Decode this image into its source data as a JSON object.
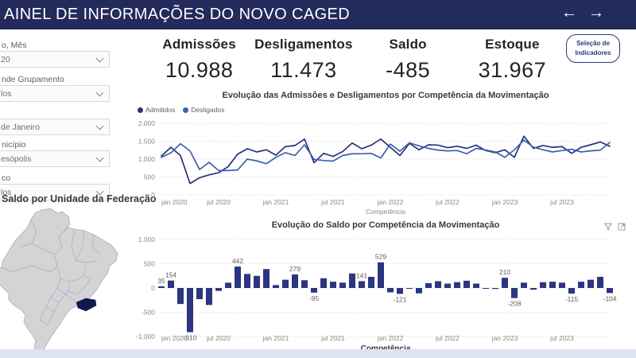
{
  "colors": {
    "header_bg": "#232a5c",
    "accent_navy": "#2c357f",
    "admitidos": "#27327e",
    "desligados": "#3d61ae",
    "bar": "#2c357f",
    "map_state_fill": "#d4d4d6",
    "map_state_border": "#a9adb6",
    "map_highlight": "#0e1a4e",
    "footer_bg": "#dce3f1"
  },
  "header": {
    "title": "AINEL DE INFORMAÇÕES DO NOVO CAGED",
    "back_arrow": "←",
    "forward_arrow": "→"
  },
  "sidebar": {
    "filters": [
      {
        "label": "o, Mês",
        "value": "20"
      },
      {
        "label": "nde Grupamento",
        "value": "los"
      },
      {
        "label": "",
        "value": "de Janeiro"
      },
      {
        "label": "nicípio",
        "value": "esópolis"
      },
      {
        "label": "co",
        "value": "los"
      }
    ],
    "map_title": "Saldo por Unidade da Federação"
  },
  "kpis": [
    {
      "label": "Admissões",
      "value": "10.988"
    },
    {
      "label": "Desligamentos",
      "value": "11.473"
    },
    {
      "label": "Saldo",
      "value": "-485"
    },
    {
      "label": "Estoque",
      "value": "31.967"
    }
  ],
  "indicator_button": {
    "line1": "Seleção de",
    "line2": "Indicadores"
  },
  "chart_data": [
    {
      "type": "line",
      "title": "Evolução das Admissões e Desligamentos por Competência da Movimentação",
      "xlabel": "Competência",
      "ylabel": "",
      "grid": true,
      "legend_position": "top-left",
      "ylim": [
        0,
        2000
      ],
      "y_ticks": [
        0,
        500,
        1000,
        1500,
        2000
      ],
      "x_ticks": [
        "jan 2020",
        "jul 2020",
        "jan 2021",
        "jul 2021",
        "jan 2022",
        "jul 2022",
        "jan 2023",
        "jul 2023"
      ],
      "x_tick_indices": [
        0,
        6,
        12,
        18,
        24,
        30,
        36,
        42
      ],
      "categories": [
        "jan 2020",
        "fev 2020",
        "mar 2020",
        "abr 2020",
        "mai 2020",
        "jun 2020",
        "jul 2020",
        "ago 2020",
        "set 2020",
        "out 2020",
        "nov 2020",
        "dez 2020",
        "jan 2021",
        "fev 2021",
        "mar 2021",
        "abr 2021",
        "mai 2021",
        "jun 2021",
        "jul 2021",
        "ago 2021",
        "set 2021",
        "out 2021",
        "nov 2021",
        "dez 2021",
        "jan 2022",
        "fev 2022",
        "mar 2022",
        "abr 2022",
        "mai 2022",
        "jun 2022",
        "jul 2022",
        "ago 2022",
        "set 2022",
        "out 2022",
        "nov 2022",
        "dez 2022",
        "jan 2023",
        "fev 2023",
        "mar 2023",
        "abr 2023",
        "mai 2023",
        "jun 2023",
        "jul 2023",
        "ago 2023",
        "set 2023",
        "out 2023",
        "nov 2023",
        "dez 2023"
      ],
      "series": [
        {
          "name": "Admitidos",
          "color": "#27327e",
          "values": [
            1085,
            1330,
            1100,
            320,
            480,
            560,
            620,
            790,
            1140,
            1290,
            1200,
            1260,
            1110,
            1350,
            1380,
            1560,
            900,
            1160,
            1075,
            1210,
            1450,
            1290,
            1390,
            1560,
            1330,
            1100,
            1440,
            1260,
            1400,
            1390,
            1320,
            1360,
            1300,
            1390,
            1240,
            1180,
            1260,
            1050,
            1640,
            1300,
            1380,
            1330,
            1350,
            1160,
            1330,
            1400,
            1480,
            1360
          ]
        },
        {
          "name": "Desligados",
          "color": "#3d61ae",
          "values": [
            1050,
            1176,
            1430,
            1230,
            710,
            910,
            680,
            680,
            698,
            1000,
            950,
            870,
            1050,
            1180,
            1101,
            1400,
            995,
            960,
            945,
            1100,
            1150,
            1149,
            1160,
            1031,
            1420,
            1221,
            1455,
            1370,
            1300,
            1250,
            1230,
            1240,
            1150,
            1300,
            1255,
            1200,
            1050,
            1258,
            1530,
            1335,
            1260,
            1200,
            1240,
            1275,
            1200,
            1230,
            1250,
            1464
          ]
        }
      ]
    },
    {
      "type": "bar",
      "title": "Evolução do Saldo por Competência da Movimentação",
      "xlabel": "Competência",
      "ylabel": "",
      "grid": true,
      "ylim": [
        -1000,
        1000
      ],
      "y_ticks": [
        -1000,
        -500,
        0,
        500,
        1000
      ],
      "x_ticks": [
        "jan 2020",
        "jul 2020",
        "jan 2021",
        "jul 2021",
        "jan 2022",
        "jul 2022",
        "jan 2023",
        "jul 2023"
      ],
      "x_tick_indices": [
        0,
        6,
        12,
        18,
        24,
        30,
        36,
        42
      ],
      "categories": [
        "jan 2020",
        "fev 2020",
        "mar 2020",
        "abr 2020",
        "mai 2020",
        "jun 2020",
        "jul 2020",
        "ago 2020",
        "set 2020",
        "out 2020",
        "nov 2020",
        "dez 2020",
        "jan 2021",
        "fev 2021",
        "mar 2021",
        "abr 2021",
        "mai 2021",
        "jun 2021",
        "jul 2021",
        "ago 2021",
        "set 2021",
        "out 2021",
        "nov 2021",
        "dez 2021",
        "jan 2022",
        "fev 2022",
        "mar 2022",
        "abr 2022",
        "mai 2022",
        "jun 2022",
        "jul 2022",
        "ago 2022",
        "set 2022",
        "out 2022",
        "nov 2022",
        "dez 2022",
        "jan 2023",
        "fev 2023",
        "mar 2023",
        "abr 2023",
        "mai 2023",
        "jun 2023",
        "jul 2023",
        "ago 2023",
        "set 2023",
        "out 2023",
        "nov 2023",
        "dez 2023"
      ],
      "values": [
        35,
        154,
        -330,
        -910,
        -230,
        -350,
        -60,
        110,
        442,
        290,
        250,
        390,
        60,
        170,
        279,
        160,
        -95,
        200,
        130,
        110,
        300,
        141,
        230,
        529,
        -90,
        -121,
        -15,
        -110,
        100,
        140,
        90,
        120,
        150,
        90,
        -15,
        -20,
        210,
        -208,
        110,
        -35,
        120,
        130,
        110,
        -115,
        130,
        170,
        230,
        -104
      ],
      "point_labels": {
        "0": "35",
        "1": "154",
        "3": "-910",
        "8": "442",
        "14": "279",
        "16": "-95",
        "21": "141",
        "23": "529",
        "25": "-121",
        "36": "210",
        "37": "-208",
        "43": "-115",
        "47": "-104"
      },
      "color": "#2c357f"
    }
  ]
}
